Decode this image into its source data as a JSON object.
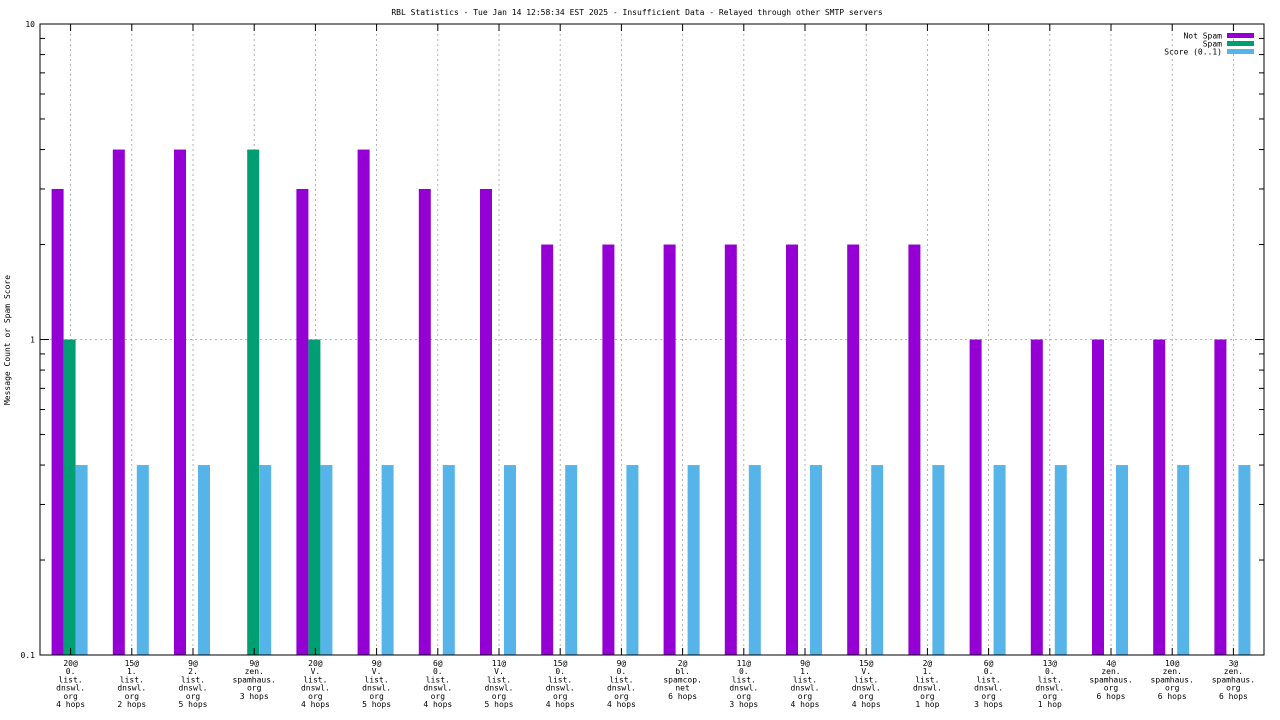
{
  "chart_data": {
    "type": "bar",
    "title": "RBL Statistics - Tue Jan 14 12:58:34 EST 2025 - Insufficient Data - Relayed through other SMTP servers",
    "ylabel": "Message Count or Spam Score",
    "yscale": "log",
    "ylim": [
      0.1,
      10
    ],
    "yticks": [
      "0.1",
      "1",
      "10"
    ],
    "grid": true,
    "legend_position": "top-right",
    "colors": {
      "not_spam": "#9400d3",
      "spam": "#009e73",
      "score": "#56b4e9"
    },
    "categories": [
      [
        "20@",
        "0.",
        "list.",
        "dnswl.",
        "org",
        "4 hops"
      ],
      [
        "15@",
        "1.",
        "list.",
        "dnswl.",
        "org",
        "2 hops"
      ],
      [
        "9@",
        "2.",
        "list.",
        "dnswl.",
        "org",
        "5 hops"
      ],
      [
        "9@",
        "zen.",
        "spamhaus.",
        "org",
        "3 hops"
      ],
      [
        "20@",
        "V.",
        "list.",
        "dnswl.",
        "org",
        "4 hops"
      ],
      [
        "9@",
        "V.",
        "list.",
        "dnswl.",
        "org",
        "5 hops"
      ],
      [
        "6@",
        "0.",
        "list.",
        "dnswl.",
        "org",
        "4 hops"
      ],
      [
        "11@",
        "V.",
        "list.",
        "dnswl.",
        "org",
        "5 hops"
      ],
      [
        "15@",
        "0.",
        "list.",
        "dnswl.",
        "org",
        "4 hops"
      ],
      [
        "9@",
        "0.",
        "list.",
        "dnswl.",
        "org",
        "4 hops"
      ],
      [
        "2@",
        "bl.",
        "spamcop.",
        "net",
        "6 hops"
      ],
      [
        "11@",
        "0.",
        "list.",
        "dnswl.",
        "org",
        "3 hops"
      ],
      [
        "9@",
        "1.",
        "list.",
        "dnswl.",
        "org",
        "4 hops"
      ],
      [
        "15@",
        "V.",
        "list.",
        "dnswl.",
        "org",
        "4 hops"
      ],
      [
        "2@",
        "1.",
        "list.",
        "dnswl.",
        "org",
        "1 hop"
      ],
      [
        "6@",
        "0.",
        "list.",
        "dnswl.",
        "org",
        "3 hops"
      ],
      [
        "13@",
        "0.",
        "list.",
        "dnswl.",
        "org",
        "1 hop"
      ],
      [
        "4@",
        "zen.",
        "spamhaus.",
        "org",
        "6 hops"
      ],
      [
        "10@",
        "zen.",
        "spamhaus.",
        "org",
        "6 hops"
      ],
      [
        "3@",
        "zen.",
        "spamhaus.",
        "org",
        "6 hops"
      ]
    ],
    "series": [
      {
        "name": "Not Spam",
        "key": "not_spam",
        "values": [
          3,
          4,
          4,
          null,
          3,
          4,
          3,
          3,
          2,
          2,
          2,
          2,
          2,
          2,
          2,
          1,
          1,
          1,
          1,
          1
        ]
      },
      {
        "name": "Spam",
        "key": "spam",
        "values": [
          1,
          null,
          null,
          4,
          1,
          null,
          null,
          null,
          null,
          null,
          null,
          null,
          null,
          null,
          null,
          null,
          null,
          null,
          null,
          null
        ]
      },
      {
        "name": "Score (0..1)",
        "key": "score",
        "values": [
          0.4,
          0.4,
          0.4,
          0.4,
          0.4,
          0.4,
          0.4,
          0.4,
          0.4,
          0.4,
          0.4,
          0.4,
          0.4,
          0.4,
          0.4,
          0.4,
          0.4,
          0.4,
          0.4,
          0.4
        ]
      }
    ]
  }
}
